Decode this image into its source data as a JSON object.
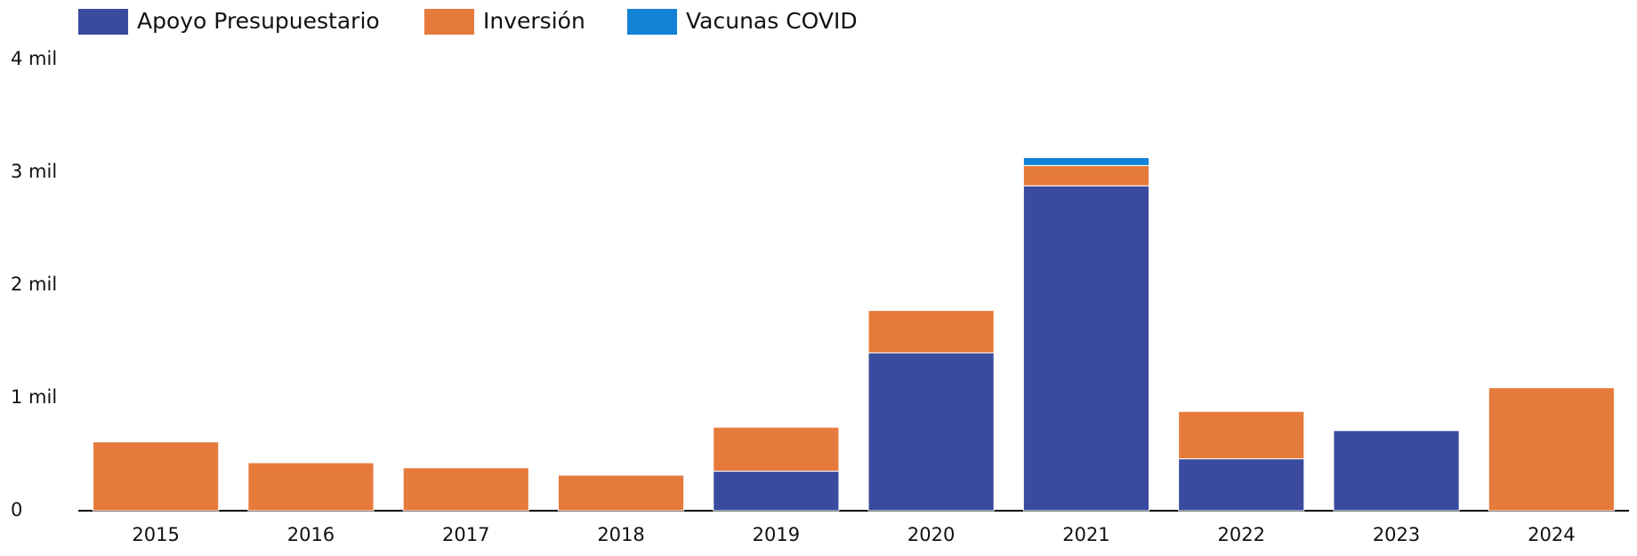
{
  "chart_data": {
    "type": "stacked_bar",
    "categories": [
      "2015",
      "2016",
      "2017",
      "2018",
      "2019",
      "2020",
      "2021",
      "2022",
      "2023",
      "2024"
    ],
    "series": [
      {
        "name": "Apoyo Presupuestario",
        "color": "#3a4b9f",
        "values": [
          null,
          null,
          null,
          null,
          350,
          1400,
          2880,
          460,
          710,
          null
        ]
      },
      {
        "name": "Inversión",
        "color": "#e67a3c",
        "values": [
          610,
          425,
          380,
          315,
          390,
          375,
          180,
          420,
          null,
          1090
        ]
      },
      {
        "name": "Vacunas COVID",
        "color": "#1282d6",
        "values": [
          null,
          null,
          null,
          null,
          null,
          null,
          70,
          null,
          null,
          null
        ]
      }
    ],
    "ylim": [
      0,
      4000
    ],
    "yticks": [
      0,
      {
        "value": 1000,
        "label": "1 mil"
      },
      {
        "value": 2000,
        "label": "2 mil"
      },
      {
        "value": 3000,
        "label": "3 mil"
      },
      {
        "value": 4000,
        "label": "4 mil"
      }
    ],
    "grid": false,
    "legend": "top-left"
  }
}
